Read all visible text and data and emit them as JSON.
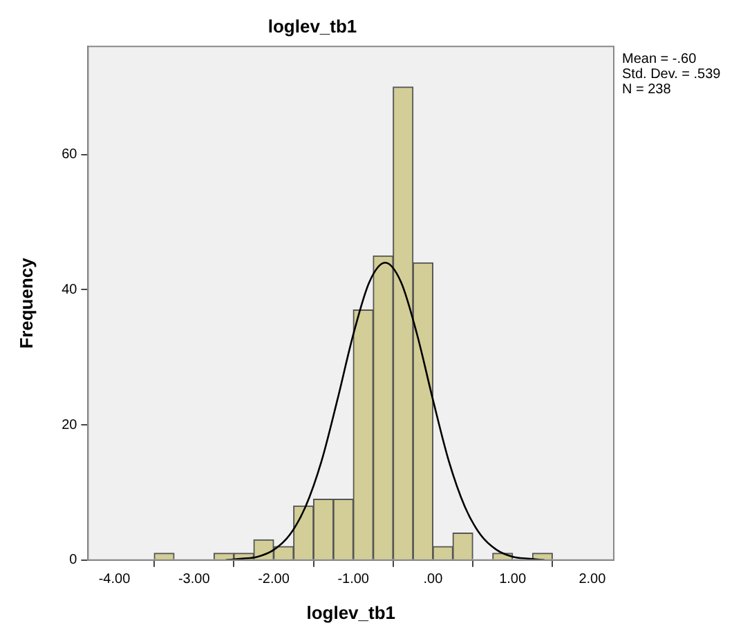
{
  "chart_data": {
    "type": "histogram",
    "title": "loglev_tb1",
    "xlabel": "loglev_tb1",
    "ylabel": "Frequency",
    "bins": [
      -3.5,
      -3.25,
      -3,
      -2.75,
      -2.5,
      -2.25,
      -2,
      -1.75,
      -1.5,
      -1.25,
      -1,
      -0.75,
      -0.5,
      -0.25,
      0,
      0.25,
      0.5,
      0.75,
      1,
      1.25,
      1.5
    ],
    "values": [
      1,
      0,
      0,
      1,
      1,
      3,
      2,
      8,
      9,
      9,
      37,
      45,
      70,
      44,
      2,
      4,
      0,
      1,
      0,
      1
    ],
    "color": "#d3ce97",
    "series": [
      {
        "type": "line",
        "color": "#000000",
        "x": [
          -2.6,
          -2.4,
          -2.2,
          -2,
          -1.8,
          -1.6,
          -1.4,
          -1.2,
          -1,
          -0.8,
          -0.6,
          -0.4,
          -0.2,
          0,
          0.2,
          0.4,
          0.6,
          0.8,
          1,
          1.2,
          1.4
        ],
        "values": [
          0,
          0.2,
          0.5,
          1.5,
          3.7,
          7.9,
          14.6,
          23.7,
          33.4,
          41.1,
          44,
          41.1,
          33.4,
          23.7,
          14.6,
          7.9,
          3.7,
          1.5,
          0.5,
          0.2,
          0
        ]
      }
    ],
    "xlim": [
      -4.33,
      2.27
    ],
    "ylim": [
      0,
      76
    ],
    "xticks": [
      {
        "value": -4,
        "label": "-4.00"
      },
      {
        "value": -3,
        "label": "-3.00"
      },
      {
        "value": -2,
        "label": "-2.00"
      },
      {
        "value": -1,
        "label": "-1.00"
      },
      {
        "value": 0,
        "label": ".00"
      },
      {
        "value": 1,
        "label": "1.00"
      },
      {
        "value": 2,
        "label": "2.00"
      }
    ],
    "yticks": [
      0,
      20,
      40,
      60
    ],
    "grid": false,
    "legend": false,
    "marker": "none",
    "annotations": [
      "Mean = -.60",
      "Std. Dev. = .539",
      "N = 238"
    ]
  }
}
